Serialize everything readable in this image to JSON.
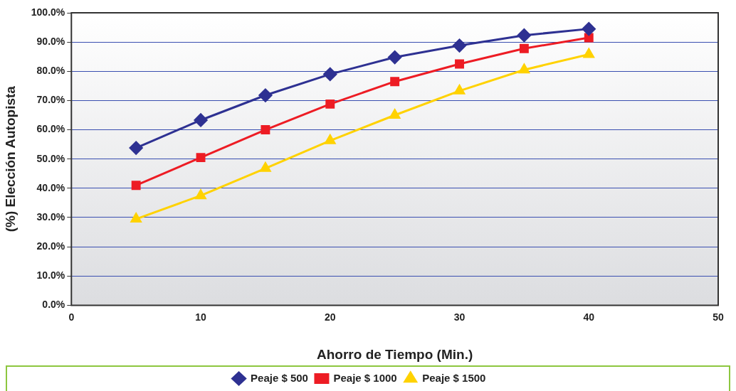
{
  "chart_data": {
    "type": "line",
    "xlabel": "Ahorro de Tiempo (Min.)",
    "ylabel": "(%) Elección Autopista",
    "x": [
      5,
      10,
      15,
      20,
      25,
      30,
      35,
      40
    ],
    "series": [
      {
        "name": "Peaje $ 500",
        "color": "#2e3192",
        "marker": "diamond",
        "values": [
          53.8,
          63.3,
          71.8,
          79,
          84.8,
          88.8,
          92.3,
          94.5
        ]
      },
      {
        "name": "Peaje $ 1000",
        "color": "#ed1c24",
        "marker": "square",
        "values": [
          41,
          50.5,
          60,
          68.8,
          76.5,
          82.5,
          87.8,
          91.5
        ]
      },
      {
        "name": "Peaje $ 1500",
        "color": "#ffd200",
        "marker": "triangle",
        "values": [
          29.5,
          37.5,
          46.8,
          56.3,
          65,
          73.3,
          80.5,
          85.8
        ]
      }
    ],
    "xlim": [
      0,
      50
    ],
    "xticks": [
      0,
      10,
      20,
      30,
      40,
      50
    ],
    "ylim": [
      0,
      100
    ],
    "yticks": [
      {
        "value": 0,
        "label": "0.0%"
      },
      {
        "value": 10,
        "label": "10.0%"
      },
      {
        "value": 20,
        "label": "20.0%"
      },
      {
        "value": 30,
        "label": "30.0%"
      },
      {
        "value": 40,
        "label": "40.0%"
      },
      {
        "value": 50,
        "label": "50.0%"
      },
      {
        "value": 60,
        "label": "60.0%"
      },
      {
        "value": 70,
        "label": "70.0%"
      },
      {
        "value": 80,
        "label": "80.0%"
      },
      {
        "value": 90,
        "label": "90.0%"
      },
      {
        "value": 100,
        "label": "100.0%"
      }
    ],
    "grid": "y",
    "legend": "bottom",
    "line_style": "solid"
  }
}
